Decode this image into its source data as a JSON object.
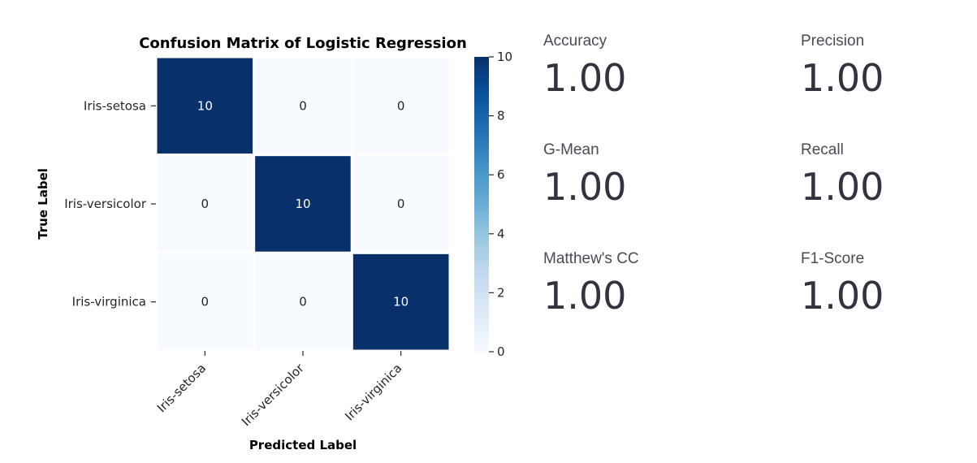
{
  "chart_data": {
    "type": "heatmap",
    "title": "Confusion Matrix of Logistic Regression",
    "xlabel": "Predicted Label",
    "ylabel": "True Label",
    "x_categories": [
      "Iris-setosa",
      "Iris-versicolor",
      "Iris-virginica"
    ],
    "y_categories": [
      "Iris-setosa",
      "Iris-versicolor",
      "Iris-virginica"
    ],
    "values": [
      [
        10,
        0,
        0
      ],
      [
        0,
        10,
        0
      ],
      [
        0,
        0,
        10
      ]
    ],
    "colorbar": {
      "range": [
        0,
        10
      ],
      "ticks": [
        0,
        2,
        4,
        6,
        8,
        10
      ],
      "colormap": "Blues"
    },
    "colors": {
      "low": "#f7fbff",
      "high": "#08306b"
    }
  },
  "metrics": [
    {
      "label": "Accuracy",
      "value": "1.00"
    },
    {
      "label": "Precision",
      "value": "1.00"
    },
    {
      "label": "G-Mean",
      "value": "1.00"
    },
    {
      "label": "Recall",
      "value": "1.00"
    },
    {
      "label": "Matthew's CC",
      "value": "1.00"
    },
    {
      "label": "F1-Score",
      "value": "1.00"
    }
  ]
}
